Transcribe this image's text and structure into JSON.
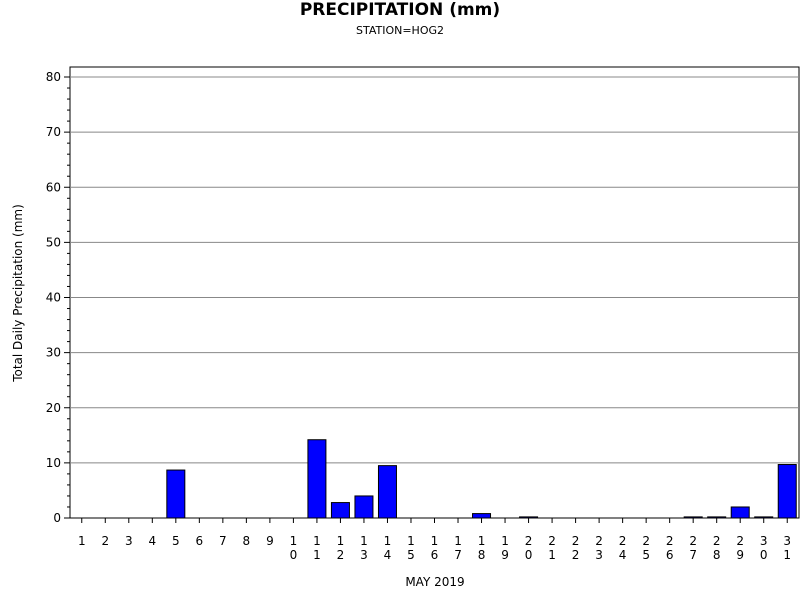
{
  "chart_data": {
    "type": "bar",
    "title": "PRECIPITATION (mm)",
    "subtitle": "STATION=HOG2",
    "xlabel": "MAY 2019",
    "ylabel": "Total Daily Precipitation (mm)",
    "ylim": [
      0,
      80
    ],
    "yticks": [
      0,
      10,
      20,
      30,
      40,
      50,
      60,
      70,
      80
    ],
    "grid": true,
    "bar_color": "#0000ff",
    "categories": [
      "1",
      "2",
      "3",
      "4",
      "5",
      "6",
      "7",
      "8",
      "9",
      "10",
      "11",
      "12",
      "13",
      "14",
      "15",
      "16",
      "17",
      "18",
      "19",
      "20",
      "21",
      "22",
      "23",
      "24",
      "25",
      "26",
      "27",
      "28",
      "29",
      "30",
      "31"
    ],
    "values": [
      0,
      0,
      0,
      0,
      8.7,
      0,
      0,
      0,
      0,
      0,
      14.2,
      2.8,
      4.0,
      9.5,
      0,
      0,
      0,
      0.8,
      0,
      0.2,
      0,
      0,
      0,
      0,
      0,
      0,
      0.2,
      0.2,
      2.0,
      0.2,
      9.7
    ]
  }
}
